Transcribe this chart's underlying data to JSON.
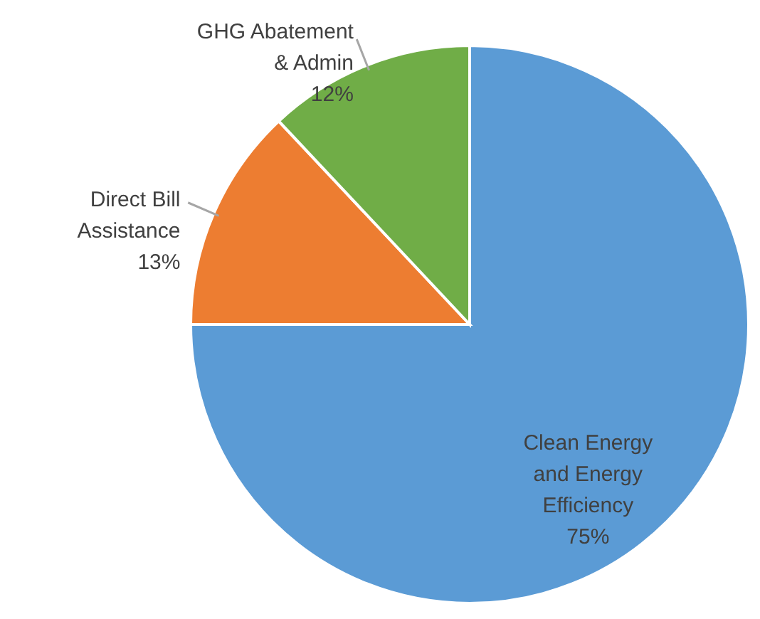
{
  "chart_data": {
    "type": "pie",
    "categories": [
      "Clean Energy\nand Energy\nEfficiency",
      "Direct Bill\nAssistance",
      "GHG Abatement\n& Admin"
    ],
    "values": [
      75,
      13,
      12
    ],
    "colors": [
      "#5b9bd5",
      "#ed7d31",
      "#70ad47"
    ],
    "value_labels": [
      "75%",
      "13%",
      "12%"
    ]
  }
}
